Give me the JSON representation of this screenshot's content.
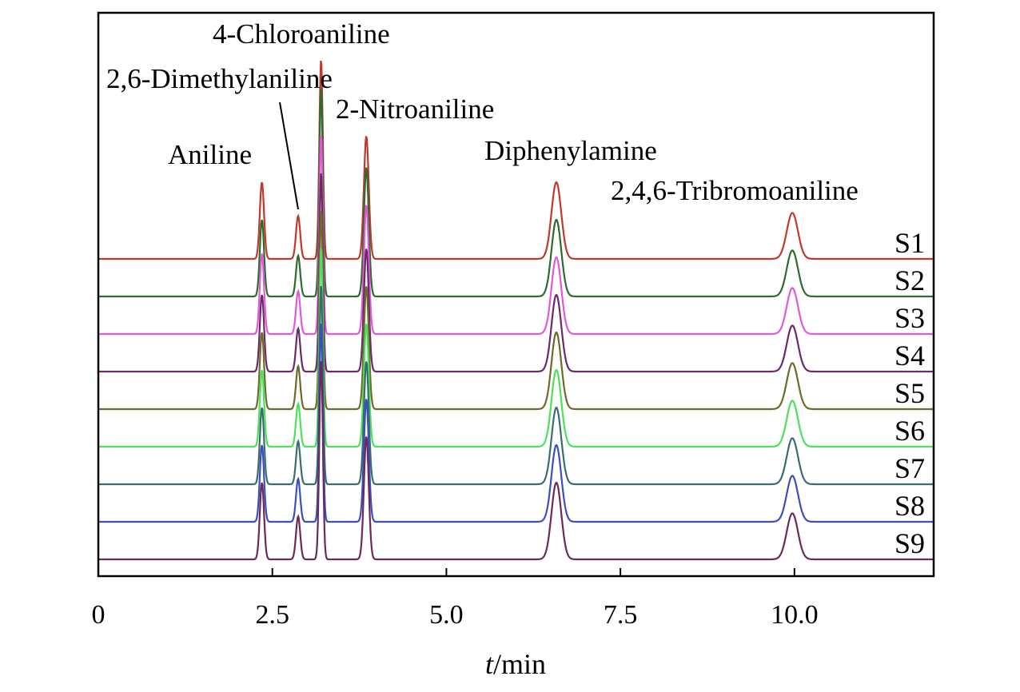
{
  "chart_data": {
    "type": "line",
    "title": "",
    "xlabel_italic": "t",
    "xlabel_unit": "/min",
    "ylabel": "",
    "xlim": [
      0,
      12
    ],
    "xticks": [
      0,
      2.5,
      5.0,
      7.5,
      10.0
    ],
    "xtick_labels": [
      "0",
      "2.5",
      "5.0",
      "7.5",
      "10.0"
    ],
    "peaks": [
      {
        "name": "Aniline",
        "rt": 2.35,
        "height": 1.0,
        "sigma": 0.03
      },
      {
        "name": "2,6-Dimethylaniline",
        "rt": 2.87,
        "height": 0.56,
        "sigma": 0.03
      },
      {
        "name": "4-Chloroaniline",
        "rt": 3.2,
        "height": 2.6,
        "sigma": 0.025
      },
      {
        "name": "2-Nitroaniline",
        "rt": 3.85,
        "height": 1.6,
        "sigma": 0.035
      },
      {
        "name": "Diphenylamine",
        "rt": 6.58,
        "height": 1.0,
        "sigma": 0.07
      },
      {
        "name": "2,4,6-Tribromoaniline",
        "rt": 9.97,
        "height": 0.6,
        "sigma": 0.08
      }
    ],
    "series": [
      {
        "name": "S1",
        "color": "#c0392b",
        "offset": 8,
        "scales": [
          1.0,
          1.0,
          1.0,
          1.0,
          1.0,
          1.0
        ]
      },
      {
        "name": "S2",
        "color": "#2e6b2e",
        "offset": 7,
        "scales": [
          1.0,
          0.95,
          1.05,
          1.05,
          1.0,
          1.0
        ]
      },
      {
        "name": "S3",
        "color": "#e05ad8",
        "offset": 6,
        "scales": [
          1.05,
          1.0,
          1.0,
          1.05,
          1.0,
          1.0
        ]
      },
      {
        "name": "S4",
        "color": "#6b2a6b",
        "offset": 5,
        "scales": [
          1.0,
          1.0,
          1.0,
          1.0,
          1.0,
          1.0
        ]
      },
      {
        "name": "S5",
        "color": "#6e6a2a",
        "offset": 4,
        "scales": [
          1.0,
          1.0,
          1.0,
          1.0,
          1.0,
          1.0
        ]
      },
      {
        "name": "S6",
        "color": "#4de05a",
        "offset": 3,
        "scales": [
          1.0,
          1.0,
          1.0,
          1.0,
          1.0,
          1.0
        ]
      },
      {
        "name": "S7",
        "color": "#3a6e6e",
        "offset": 2,
        "scales": [
          1.0,
          1.0,
          1.0,
          1.0,
          1.0,
          1.0
        ]
      },
      {
        "name": "S8",
        "color": "#3b4fc0",
        "offset": 1,
        "scales": [
          1.0,
          1.0,
          1.0,
          1.0,
          1.0,
          1.0
        ]
      },
      {
        "name": "S9",
        "color": "#6b2a5a",
        "offset": 0,
        "scales": [
          1.0,
          1.0,
          1.0,
          1.0,
          1.0,
          1.0
        ]
      }
    ]
  }
}
